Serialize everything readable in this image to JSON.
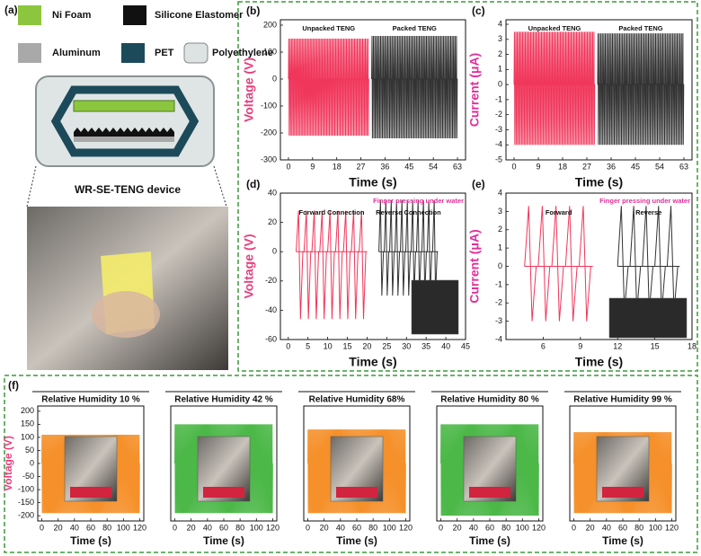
{
  "figure": {
    "panel_a": "(a)",
    "materials": [
      {
        "name": "Ni Foam",
        "color": "#8cc63e"
      },
      {
        "name": "Silicone Elastomer",
        "color": "#111111"
      },
      {
        "name": "Aluminum",
        "color": "#a9a9a9"
      },
      {
        "name": "PET",
        "color": "#1d4a5a"
      },
      {
        "name": "Polyethylene",
        "color": "#dde3e3"
      }
    ],
    "device": "WR-SE-TENG device",
    "panel_f": "(f)"
  },
  "chart_data": [
    {
      "type": "signal",
      "panel": "(b)",
      "ylabel": "Voltage (V)",
      "xlabel": "Time (s)",
      "label_color": "#e6407c",
      "xlim": [
        -3,
        66
      ],
      "ylim": [
        -300,
        220
      ],
      "xticks": [
        0,
        9,
        18,
        27,
        36,
        45,
        54,
        63
      ],
      "yticks": [
        -300,
        -200,
        -100,
        0,
        100,
        200
      ],
      "series": [
        {
          "name": "Unpacked TENG",
          "color": "#f0365a",
          "x": [
            0,
            30
          ],
          "upper": 150,
          "lower": -210,
          "cycles": 60
        },
        {
          "name": "Packed TENG",
          "color": "#333333",
          "x": [
            31,
            63
          ],
          "upper": 160,
          "lower": -220,
          "cycles": 60
        }
      ]
    },
    {
      "type": "signal",
      "panel": "(c)",
      "ylabel": "Current (μA)",
      "xlabel": "Time (s)",
      "label_color": "#e0309a",
      "xlim": [
        -3,
        66
      ],
      "ylim": [
        -5,
        4.3
      ],
      "xticks": [
        0,
        9,
        18,
        27,
        36,
        45,
        54,
        63
      ],
      "yticks": [
        -5,
        -4,
        -3,
        -2,
        -1,
        0,
        1,
        2,
        3,
        4
      ],
      "series": [
        {
          "name": "Unpacked TENG",
          "color": "#f0365a",
          "x": [
            0,
            30
          ],
          "upper": 3.5,
          "lower": -4,
          "cycles": 60
        },
        {
          "name": "Packed TENG",
          "color": "#333333",
          "x": [
            31,
            63
          ],
          "upper": 3.4,
          "lower": -4,
          "cycles": 60
        }
      ]
    },
    {
      "type": "signal",
      "panel": "(d)",
      "ylabel": "Voltage (V)",
      "xlabel": "Time (s)",
      "label_color": "#e6407c",
      "annotation": "Finger pressing under water",
      "xlim": [
        -2,
        45
      ],
      "ylim": [
        -60,
        40
      ],
      "xticks": [
        0,
        5,
        10,
        15,
        20,
        25,
        30,
        35,
        40,
        45
      ],
      "yticks": [
        -60,
        -40,
        -20,
        0,
        20,
        40
      ],
      "series": [
        {
          "name": "Forward Connection",
          "color": "#f0365a",
          "x": [
            2,
            20
          ],
          "upper": 28,
          "lower": -46,
          "cycles": 9
        },
        {
          "name": "Reverse Connection",
          "color": "#333333",
          "x": [
            23,
            38
          ],
          "upper": 35,
          "lower": -30,
          "cycles": 11
        }
      ]
    },
    {
      "type": "signal",
      "panel": "(e)",
      "ylabel": "Current (μA)",
      "xlabel": "Time (s)",
      "label_color": "#e0309a",
      "annotation": "Finger pressing under water",
      "xlim": [
        3,
        18
      ],
      "ylim": [
        -4,
        4
      ],
      "xticks": [
        6,
        9,
        12,
        15,
        18
      ],
      "yticks": [
        -4,
        -3,
        -2,
        -1,
        0,
        1,
        2,
        3,
        4
      ],
      "series": [
        {
          "name": "Forward",
          "color": "#f0365a",
          "x": [
            4.5,
            10
          ],
          "upper": 3.3,
          "lower": -3,
          "cycles": 5
        },
        {
          "name": "Reverse",
          "color": "#333333",
          "x": [
            12,
            17
          ],
          "upper": 3.3,
          "lower": -2.5,
          "cycles": 5
        }
      ]
    },
    {
      "type": "signal",
      "title": "Relative Humidity 10 %",
      "ylabel": "Voltage (V)",
      "xlabel": "Time (s)",
      "label_color": "#e6407c",
      "xlim": [
        -5,
        125
      ],
      "ylim": [
        -220,
        220
      ],
      "xticks": [
        0,
        20,
        40,
        60,
        80,
        100,
        120
      ],
      "yticks": [
        -200,
        -150,
        -100,
        -50,
        0,
        50,
        100,
        150,
        200
      ],
      "series": [
        {
          "color": "#f5902a",
          "x": [
            0,
            120
          ],
          "upper": 110,
          "lower": -190,
          "cycles": 110
        }
      ]
    },
    {
      "type": "signal",
      "title": "Relative Humidity 42 %",
      "xlabel": "Time (s)",
      "xlim": [
        -5,
        125
      ],
      "ylim": [
        -220,
        220
      ],
      "xticks": [
        0,
        20,
        40,
        60,
        80,
        100,
        120
      ],
      "series": [
        {
          "color": "#4cb848",
          "x": [
            0,
            120
          ],
          "upper": 150,
          "lower": -190,
          "cycles": 110
        }
      ]
    },
    {
      "type": "signal",
      "title": "Relative Humidity 68%",
      "xlabel": "Time (s)",
      "xlim": [
        -5,
        125
      ],
      "ylim": [
        -220,
        220
      ],
      "xticks": [
        0,
        20,
        40,
        60,
        80,
        100,
        120
      ],
      "series": [
        {
          "color": "#f5902a",
          "x": [
            0,
            120
          ],
          "upper": 130,
          "lower": -190,
          "cycles": 110
        }
      ]
    },
    {
      "type": "signal",
      "title": "Relative Humidity 80 %",
      "xlabel": "Time (s)",
      "xlim": [
        -5,
        125
      ],
      "ylim": [
        -220,
        220
      ],
      "xticks": [
        0,
        20,
        40,
        60,
        80,
        100,
        120
      ],
      "series": [
        {
          "color": "#4cb848",
          "x": [
            0,
            120
          ],
          "upper": 150,
          "lower": -200,
          "cycles": 110
        }
      ]
    },
    {
      "type": "signal",
      "title": "Relative Humidity 99 %",
      "xlabel": "Time (s)",
      "xlim": [
        -5,
        125
      ],
      "ylim": [
        -220,
        220
      ],
      "xticks": [
        0,
        20,
        40,
        60,
        80,
        100,
        120
      ],
      "series": [
        {
          "color": "#f5902a",
          "x": [
            0,
            120
          ],
          "upper": 120,
          "lower": -190,
          "cycles": 110
        }
      ]
    }
  ]
}
